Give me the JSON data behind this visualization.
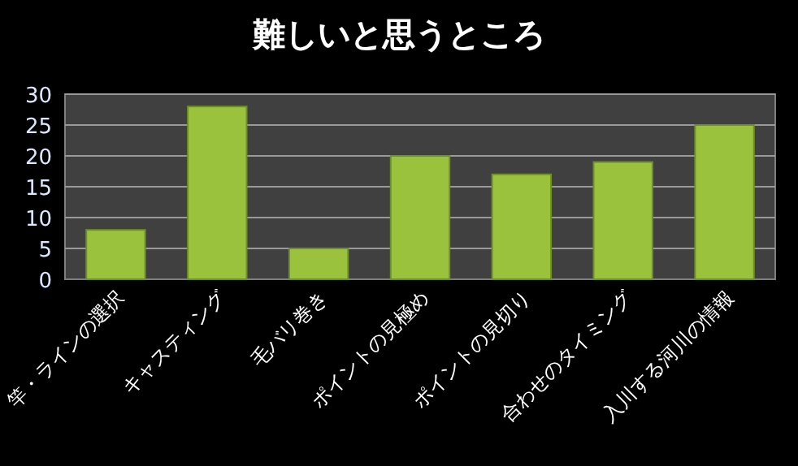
{
  "chart_data": {
    "type": "bar",
    "title": "難しいと思うところ",
    "categories": [
      "竿・ラインの選択",
      "キャスティング",
      "毛バリ巻き",
      "ポイントの見極め",
      "ポイントの見切り",
      "合わせのタイミング",
      "入川する河川の情報"
    ],
    "values": [
      8,
      28,
      5,
      20,
      17,
      19,
      25
    ],
    "color": "#9bc23c",
    "ylim": [
      0,
      30
    ],
    "yticks": [
      0,
      5,
      10,
      15,
      20,
      25,
      30
    ],
    "grid": "y"
  }
}
